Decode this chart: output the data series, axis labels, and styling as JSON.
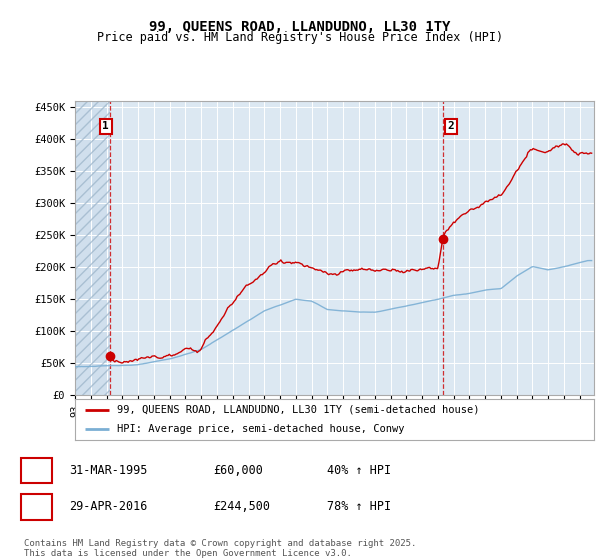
{
  "title": "99, QUEENS ROAD, LLANDUDNO, LL30 1TY",
  "subtitle": "Price paid vs. HM Land Registry's House Price Index (HPI)",
  "price_color": "#cc0000",
  "hpi_color": "#7bafd4",
  "hatch_bg_color": "#dce8f2",
  "plot_bg_color": "#dce8f2",
  "ylim": [
    0,
    460000
  ],
  "yticks": [
    0,
    50000,
    100000,
    150000,
    200000,
    250000,
    300000,
    350000,
    400000,
    450000
  ],
  "ytick_labels": [
    "£0",
    "£50K",
    "£100K",
    "£150K",
    "£200K",
    "£250K",
    "£300K",
    "£350K",
    "£400K",
    "£450K"
  ],
  "xlim_start": 1993.0,
  "xlim_end": 2025.9,
  "t1_x": 1995.25,
  "t1_y": 60000,
  "t2_x": 2016.33,
  "t2_y": 244500,
  "legend_line1": "99, QUEENS ROAD, LLANDUDNO, LL30 1TY (semi-detached house)",
  "legend_line2": "HPI: Average price, semi-detached house, Conwy",
  "table_row1": [
    "1",
    "31-MAR-1995",
    "£60,000",
    "40% ↑ HPI"
  ],
  "table_row2": [
    "2",
    "29-APR-2016",
    "£244,500",
    "78% ↑ HPI"
  ],
  "footnote": "Contains HM Land Registry data © Crown copyright and database right 2025.\nThis data is licensed under the Open Government Licence v3.0.",
  "title_fontsize": 10,
  "subtitle_fontsize": 8.5,
  "tick_fontsize": 7.5,
  "legend_fontsize": 7.5,
  "table_fontsize": 8.5,
  "footnote_fontsize": 6.5
}
